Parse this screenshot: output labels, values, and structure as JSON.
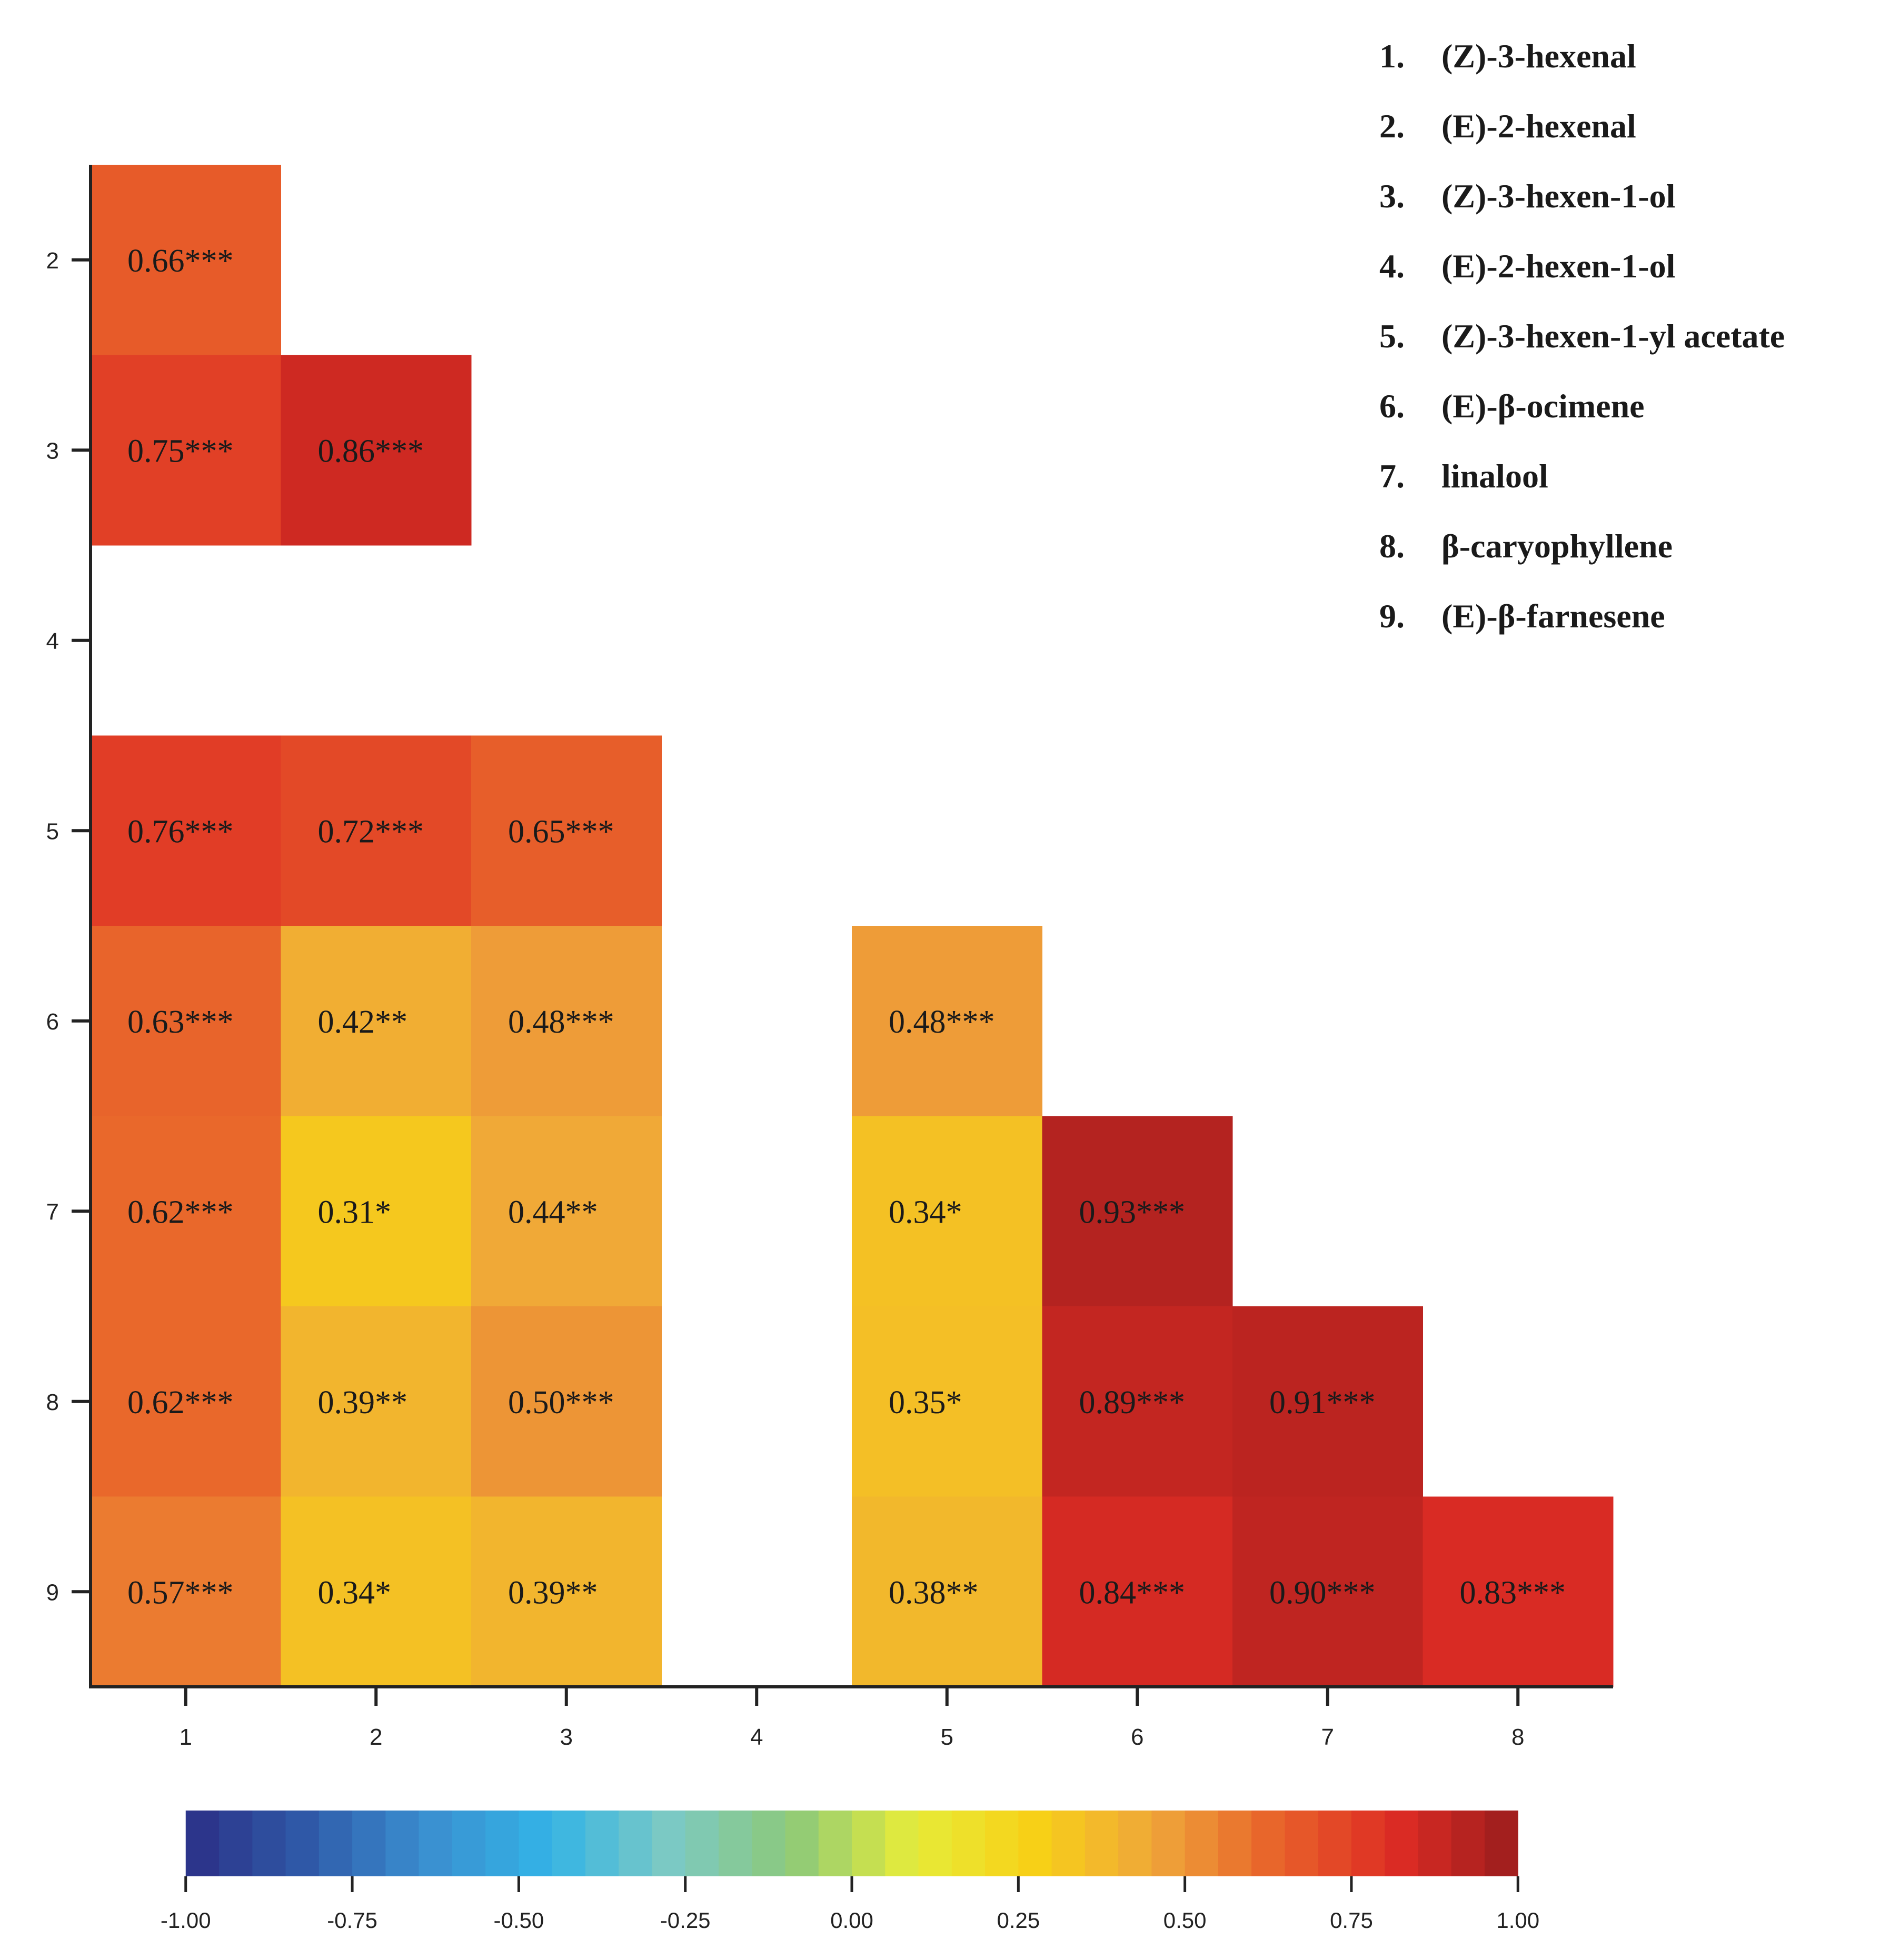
{
  "chart_data": {
    "type": "heatmap",
    "title": "",
    "xlabel": "",
    "ylabel": "",
    "x_categories": [
      "1",
      "2",
      "3",
      "4",
      "5",
      "6",
      "7",
      "8"
    ],
    "y_categories": [
      "2",
      "3",
      "4",
      "5",
      "6",
      "7",
      "8",
      "9"
    ],
    "value_range": [
      -1.0,
      1.0
    ],
    "cells": [
      {
        "row": "2",
        "col": "1",
        "value": 0.66,
        "label": "0.66***"
      },
      {
        "row": "3",
        "col": "1",
        "value": 0.75,
        "label": "0.75***"
      },
      {
        "row": "3",
        "col": "2",
        "value": 0.86,
        "label": "0.86***"
      },
      {
        "row": "5",
        "col": "1",
        "value": 0.76,
        "label": "0.76***"
      },
      {
        "row": "5",
        "col": "2",
        "value": 0.72,
        "label": "0.72***"
      },
      {
        "row": "5",
        "col": "3",
        "value": 0.65,
        "label": "0.65***"
      },
      {
        "row": "6",
        "col": "1",
        "value": 0.63,
        "label": "0.63***"
      },
      {
        "row": "6",
        "col": "2",
        "value": 0.42,
        "label": "0.42**"
      },
      {
        "row": "6",
        "col": "3",
        "value": 0.48,
        "label": "0.48***"
      },
      {
        "row": "6",
        "col": "5",
        "value": 0.48,
        "label": "0.48***"
      },
      {
        "row": "7",
        "col": "1",
        "value": 0.62,
        "label": "0.62***"
      },
      {
        "row": "7",
        "col": "2",
        "value": 0.31,
        "label": "0.31*"
      },
      {
        "row": "7",
        "col": "3",
        "value": 0.44,
        "label": "0.44**"
      },
      {
        "row": "7",
        "col": "5",
        "value": 0.34,
        "label": "0.34*"
      },
      {
        "row": "7",
        "col": "6",
        "value": 0.93,
        "label": "0.93***"
      },
      {
        "row": "8",
        "col": "1",
        "value": 0.62,
        "label": "0.62***"
      },
      {
        "row": "8",
        "col": "2",
        "value": 0.39,
        "label": "0.39**"
      },
      {
        "row": "8",
        "col": "3",
        "value": 0.5,
        "label": "0.50***"
      },
      {
        "row": "8",
        "col": "5",
        "value": 0.35,
        "label": "0.35*"
      },
      {
        "row": "8",
        "col": "6",
        "value": 0.89,
        "label": "0.89***"
      },
      {
        "row": "8",
        "col": "7",
        "value": 0.91,
        "label": "0.91***"
      },
      {
        "row": "9",
        "col": "1",
        "value": 0.57,
        "label": "0.57***"
      },
      {
        "row": "9",
        "col": "2",
        "value": 0.34,
        "label": "0.34*"
      },
      {
        "row": "9",
        "col": "3",
        "value": 0.39,
        "label": "0.39**"
      },
      {
        "row": "9",
        "col": "5",
        "value": 0.38,
        "label": "0.38**"
      },
      {
        "row": "9",
        "col": "6",
        "value": 0.84,
        "label": "0.84***"
      },
      {
        "row": "9",
        "col": "7",
        "value": 0.9,
        "label": "0.90***"
      },
      {
        "row": "9",
        "col": "8",
        "value": 0.83,
        "label": "0.83***"
      }
    ],
    "colorbar": {
      "ticks": [
        "-1.00",
        "-0.75",
        "-0.50",
        "-0.25",
        "0.00",
        "0.25",
        "0.50",
        "0.75",
        "1.00"
      ],
      "stops": [
        "#2b2f86",
        "#2f5aa8",
        "#3a8fd0",
        "#33b3e6",
        "#7cc9c4",
        "#8cc97a",
        "#e6ec3a",
        "#f7d117",
        "#efa63a",
        "#e8622a",
        "#dd2c24",
        "#9a1d1d"
      ]
    },
    "legend": [
      {
        "num": "1.",
        "name": "(Z)-3-hexenal"
      },
      {
        "num": "2.",
        "name": "(E)-2-hexenal"
      },
      {
        "num": "3.",
        "name": "(Z)-3-hexen-1-ol"
      },
      {
        "num": "4.",
        "name": "(E)-2-hexen-1-ol"
      },
      {
        "num": "5.",
        "name": "(Z)-3-hexen-1-yl acetate"
      },
      {
        "num": "6.",
        "name": "(E)-β-ocimene"
      },
      {
        "num": "7.",
        "name": "linalool"
      },
      {
        "num": "8.",
        "name": "β-caryophyllene"
      },
      {
        "num": "9.",
        "name": "(E)-β-farnesene"
      }
    ]
  }
}
